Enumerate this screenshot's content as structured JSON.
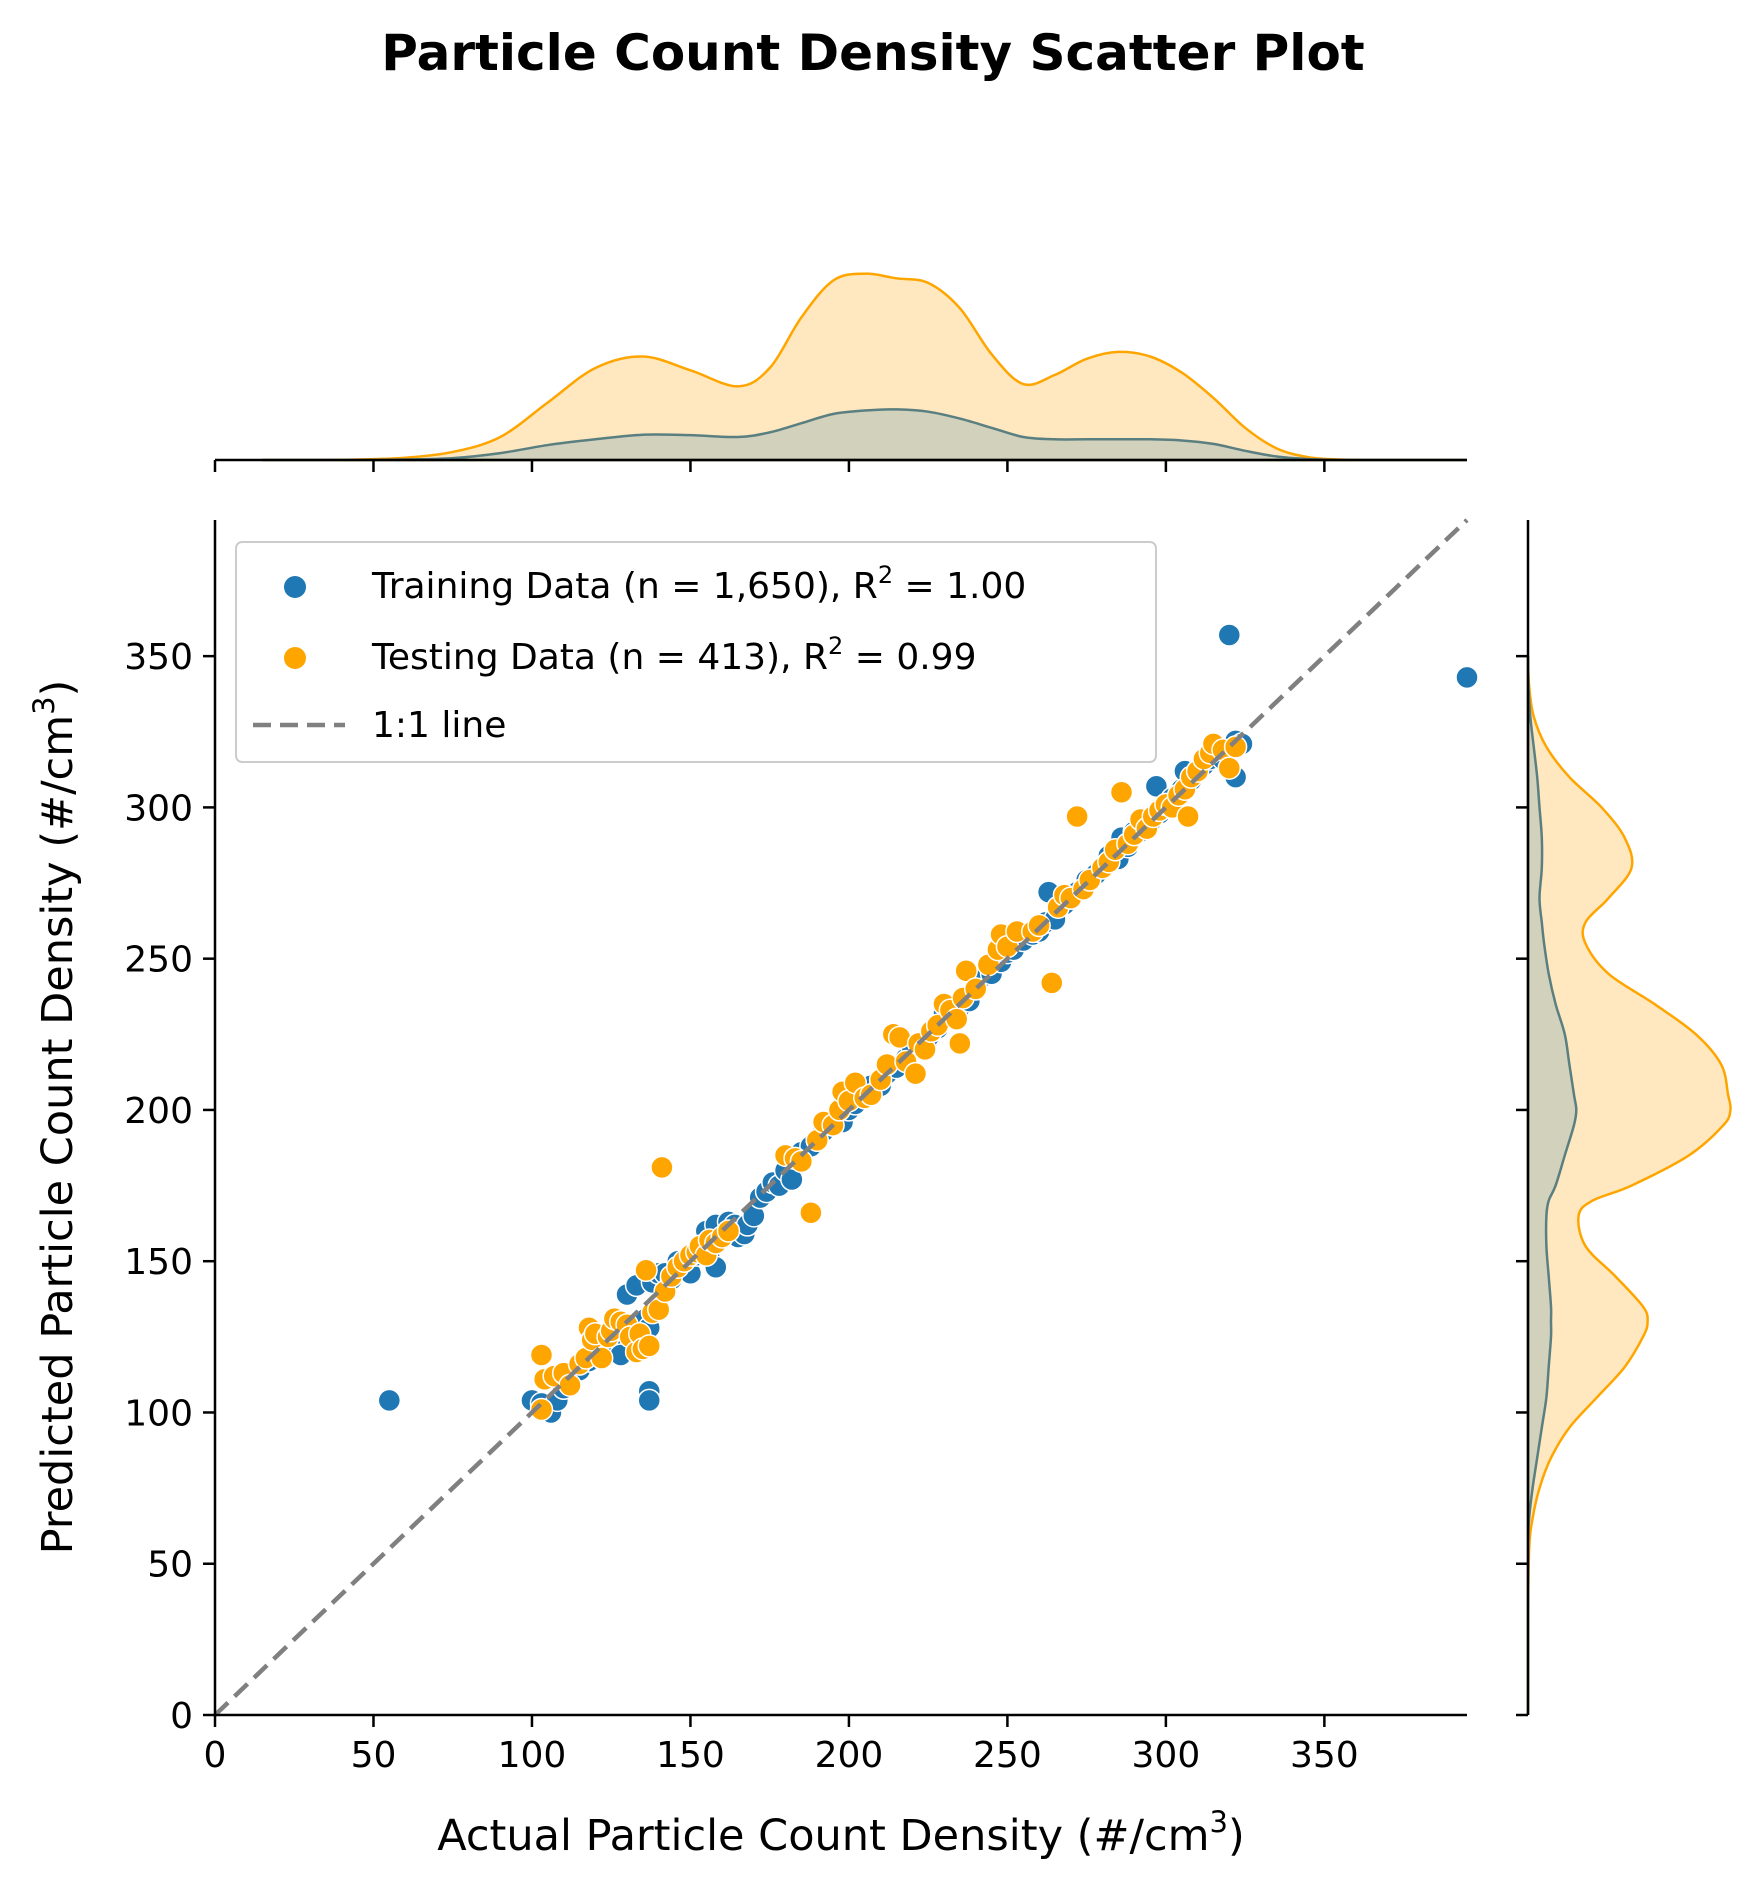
{
  "chart_data": {
    "type": "scatter",
    "title": "Particle Count Density Scatter Plot",
    "xlabel": "Actual Particle Count Density (#/cm",
    "xlabel_sup": "3",
    "xlabel_end": ")",
    "ylabel": "Predicted Particle Count Density (#/cm",
    "ylabel_sup": "3",
    "ylabel_end": ")",
    "xlim": [
      0,
      395
    ],
    "ylim": [
      0,
      395
    ],
    "xticks": [
      0,
      50,
      100,
      150,
      200,
      250,
      300,
      350
    ],
    "yticks": [
      0,
      50,
      100,
      150,
      200,
      250,
      300,
      350
    ],
    "grid": false,
    "legend_position": "upper-left",
    "colors": {
      "training": "#1f77b4",
      "testing": "#ffa500",
      "one_to_one": "#808080"
    },
    "legend": [
      {
        "key": "training",
        "text": "Training Data (n = 1,650), R",
        "sup": "2",
        "text_end": " = 1.00"
      },
      {
        "key": "testing",
        "text": "Testing Data (n = 413), R",
        "sup": "2",
        "text_end": " = 0.99"
      },
      {
        "key": "one_to_one",
        "text": "1:1 line"
      }
    ],
    "series": [
      {
        "name": "Training Data (n = 1,650), R² = 1.00",
        "points": [
          [
            55,
            104
          ],
          [
            100,
            104
          ],
          [
            103,
            103
          ],
          [
            106,
            100
          ],
          [
            108,
            104
          ],
          [
            110,
            108
          ],
          [
            112,
            110
          ],
          [
            115,
            114
          ],
          [
            118,
            117
          ],
          [
            120,
            120
          ],
          [
            122,
            122
          ],
          [
            125,
            124
          ],
          [
            127,
            125
          ],
          [
            128,
            119
          ],
          [
            130,
            139
          ],
          [
            132,
            125
          ],
          [
            133,
            142
          ],
          [
            135,
            128
          ],
          [
            136,
            131
          ],
          [
            137,
            128
          ],
          [
            137,
            107
          ],
          [
            137,
            104
          ],
          [
            138,
            143
          ],
          [
            140,
            146
          ],
          [
            142,
            146
          ],
          [
            144,
            144
          ],
          [
            146,
            150
          ],
          [
            148,
            147
          ],
          [
            150,
            146
          ],
          [
            152,
            152
          ],
          [
            154,
            154
          ],
          [
            155,
            160
          ],
          [
            156,
            151
          ],
          [
            158,
            148
          ],
          [
            158,
            162
          ],
          [
            160,
            158
          ],
          [
            162,
            163
          ],
          [
            164,
            162
          ],
          [
            165,
            158
          ],
          [
            167,
            159
          ],
          [
            168,
            162
          ],
          [
            170,
            165
          ],
          [
            172,
            171
          ],
          [
            174,
            173
          ],
          [
            176,
            176
          ],
          [
            178,
            175
          ],
          [
            180,
            180
          ],
          [
            182,
            177
          ],
          [
            185,
            186
          ],
          [
            188,
            188
          ],
          [
            190,
            190
          ],
          [
            192,
            193
          ],
          [
            195,
            195
          ],
          [
            198,
            196
          ],
          [
            200,
            200
          ],
          [
            202,
            202
          ],
          [
            205,
            204
          ],
          [
            207,
            208
          ],
          [
            210,
            208
          ],
          [
            212,
            212
          ],
          [
            215,
            214
          ],
          [
            218,
            217
          ],
          [
            220,
            220
          ],
          [
            222,
            222
          ],
          [
            225,
            224
          ],
          [
            228,
            227
          ],
          [
            230,
            232
          ],
          [
            232,
            232
          ],
          [
            235,
            234
          ],
          [
            238,
            236
          ],
          [
            240,
            240
          ],
          [
            242,
            244
          ],
          [
            245,
            245
          ],
          [
            248,
            249
          ],
          [
            250,
            252
          ],
          [
            252,
            253
          ],
          [
            255,
            256
          ],
          [
            258,
            258
          ],
          [
            260,
            259
          ],
          [
            262,
            262
          ],
          [
            263,
            272
          ],
          [
            265,
            263
          ],
          [
            268,
            268
          ],
          [
            270,
            270
          ],
          [
            272,
            272
          ],
          [
            275,
            276
          ],
          [
            278,
            278
          ],
          [
            280,
            280
          ],
          [
            282,
            284
          ],
          [
            285,
            283
          ],
          [
            286,
            290
          ],
          [
            288,
            287
          ],
          [
            290,
            292
          ],
          [
            292,
            292
          ],
          [
            295,
            295
          ],
          [
            297,
            307
          ],
          [
            298,
            298
          ],
          [
            300,
            300
          ],
          [
            302,
            303
          ],
          [
            305,
            306
          ],
          [
            306,
            312
          ],
          [
            308,
            309
          ],
          [
            310,
            312
          ],
          [
            312,
            314
          ],
          [
            314,
            316
          ],
          [
            316,
            318
          ],
          [
            318,
            316
          ],
          [
            320,
            320
          ],
          [
            320,
            357
          ],
          [
            322,
            322
          ],
          [
            322,
            310
          ],
          [
            324,
            321
          ],
          [
            395,
            343
          ]
        ]
      },
      {
        "name": "Testing Data (n = 413), R² = 0.99",
        "points": [
          [
            103,
            119
          ],
          [
            104,
            111
          ],
          [
            103,
            101
          ],
          [
            107,
            112
          ],
          [
            110,
            113
          ],
          [
            112,
            109
          ],
          [
            115,
            116
          ],
          [
            117,
            118
          ],
          [
            118,
            128
          ],
          [
            119,
            124
          ],
          [
            120,
            126
          ],
          [
            122,
            118
          ],
          [
            124,
            125
          ],
          [
            125,
            127
          ],
          [
            126,
            131
          ],
          [
            128,
            130
          ],
          [
            130,
            129
          ],
          [
            131,
            125
          ],
          [
            133,
            120
          ],
          [
            134,
            126
          ],
          [
            135,
            121
          ],
          [
            136,
            147
          ],
          [
            137,
            122
          ],
          [
            138,
            133
          ],
          [
            140,
            134
          ],
          [
            141,
            181
          ],
          [
            142,
            140
          ],
          [
            144,
            145
          ],
          [
            146,
            148
          ],
          [
            148,
            150
          ],
          [
            150,
            152
          ],
          [
            152,
            153
          ],
          [
            153,
            155
          ],
          [
            155,
            152
          ],
          [
            156,
            157
          ],
          [
            158,
            156
          ],
          [
            160,
            158
          ],
          [
            162,
            160
          ],
          [
            180,
            185
          ],
          [
            183,
            184
          ],
          [
            185,
            183
          ],
          [
            188,
            166
          ],
          [
            190,
            190
          ],
          [
            192,
            196
          ],
          [
            195,
            195
          ],
          [
            197,
            200
          ],
          [
            198,
            206
          ],
          [
            200,
            203
          ],
          [
            202,
            209
          ],
          [
            205,
            204
          ],
          [
            207,
            205
          ],
          [
            210,
            210
          ],
          [
            212,
            215
          ],
          [
            214,
            225
          ],
          [
            216,
            224
          ],
          [
            218,
            216
          ],
          [
            221,
            212
          ],
          [
            222,
            222
          ],
          [
            224,
            220
          ],
          [
            226,
            226
          ],
          [
            228,
            228
          ],
          [
            230,
            235
          ],
          [
            232,
            233
          ],
          [
            234,
            230
          ],
          [
            235,
            222
          ],
          [
            236,
            237
          ],
          [
            237,
            246
          ],
          [
            240,
            240
          ],
          [
            244,
            248
          ],
          [
            247,
            253
          ],
          [
            248,
            258
          ],
          [
            250,
            254
          ],
          [
            253,
            259
          ],
          [
            258,
            259
          ],
          [
            260,
            261
          ],
          [
            264,
            242
          ],
          [
            266,
            267
          ],
          [
            268,
            271
          ],
          [
            270,
            270
          ],
          [
            272,
            297
          ],
          [
            274,
            273
          ],
          [
            276,
            276
          ],
          [
            280,
            280
          ],
          [
            282,
            282
          ],
          [
            284,
            286
          ],
          [
            286,
            305
          ],
          [
            288,
            288
          ],
          [
            290,
            291
          ],
          [
            292,
            296
          ],
          [
            294,
            293
          ],
          [
            296,
            297
          ],
          [
            298,
            299
          ],
          [
            300,
            301
          ],
          [
            302,
            300
          ],
          [
            304,
            304
          ],
          [
            306,
            306
          ],
          [
            307,
            297
          ],
          [
            308,
            310
          ],
          [
            310,
            312
          ],
          [
            312,
            316
          ],
          [
            314,
            318
          ],
          [
            315,
            321
          ],
          [
            318,
            319
          ],
          [
            320,
            313
          ],
          [
            322,
            320
          ]
        ]
      }
    ],
    "one_to_one_line": [
      [
        0,
        0
      ],
      [
        395,
        395
      ]
    ],
    "marginal_x": {
      "x": [
        15,
        30,
        45,
        60,
        75,
        90,
        105,
        120,
        135,
        150,
        165,
        175,
        185,
        195,
        205,
        215,
        225,
        235,
        245,
        255,
        265,
        275,
        285,
        295,
        305,
        315,
        325,
        335,
        345,
        355,
        365,
        375,
        395
      ],
      "testing": [
        0,
        0,
        0.002,
        0.01,
        0.035,
        0.1,
        0.25,
        0.4,
        0.45,
        0.39,
        0.32,
        0.4,
        0.62,
        0.78,
        0.81,
        0.79,
        0.77,
        0.66,
        0.46,
        0.33,
        0.37,
        0.44,
        0.47,
        0.45,
        0.38,
        0.27,
        0.14,
        0.05,
        0.012,
        0.002,
        0,
        0,
        0
      ],
      "training": [
        0,
        0,
        0,
        0.002,
        0.008,
        0.03,
        0.065,
        0.09,
        0.11,
        0.108,
        0.1,
        0.12,
        0.16,
        0.2,
        0.215,
        0.22,
        0.21,
        0.18,
        0.14,
        0.1,
        0.09,
        0.09,
        0.09,
        0.09,
        0.085,
        0.07,
        0.04,
        0.015,
        0.004,
        0,
        0,
        0,
        0
      ]
    },
    "marginal_y": {
      "y": [
        0,
        30,
        55,
        65,
        75,
        85,
        95,
        105,
        115,
        125,
        130,
        135,
        145,
        155,
        165,
        170,
        175,
        185,
        195,
        200,
        205,
        215,
        225,
        235,
        245,
        255,
        262,
        270,
        280,
        290,
        300,
        310,
        320,
        330,
        340,
        350
      ],
      "testing": [
        0,
        0,
        0.005,
        0.02,
        0.05,
        0.1,
        0.18,
        0.3,
        0.42,
        0.5,
        0.52,
        0.5,
        0.38,
        0.25,
        0.22,
        0.28,
        0.45,
        0.7,
        0.85,
        0.88,
        0.87,
        0.84,
        0.73,
        0.55,
        0.35,
        0.25,
        0.25,
        0.35,
        0.45,
        0.42,
        0.32,
        0.18,
        0.08,
        0.025,
        0.005,
        0
      ],
      "training": [
        0,
        0,
        0,
        0.005,
        0.02,
        0.04,
        0.06,
        0.08,
        0.09,
        0.1,
        0.1,
        0.1,
        0.09,
        0.08,
        0.08,
        0.09,
        0.12,
        0.16,
        0.2,
        0.21,
        0.2,
        0.18,
        0.16,
        0.12,
        0.09,
        0.07,
        0.06,
        0.05,
        0.06,
        0.06,
        0.05,
        0.04,
        0.025,
        0.01,
        0.002,
        0
      ]
    }
  }
}
